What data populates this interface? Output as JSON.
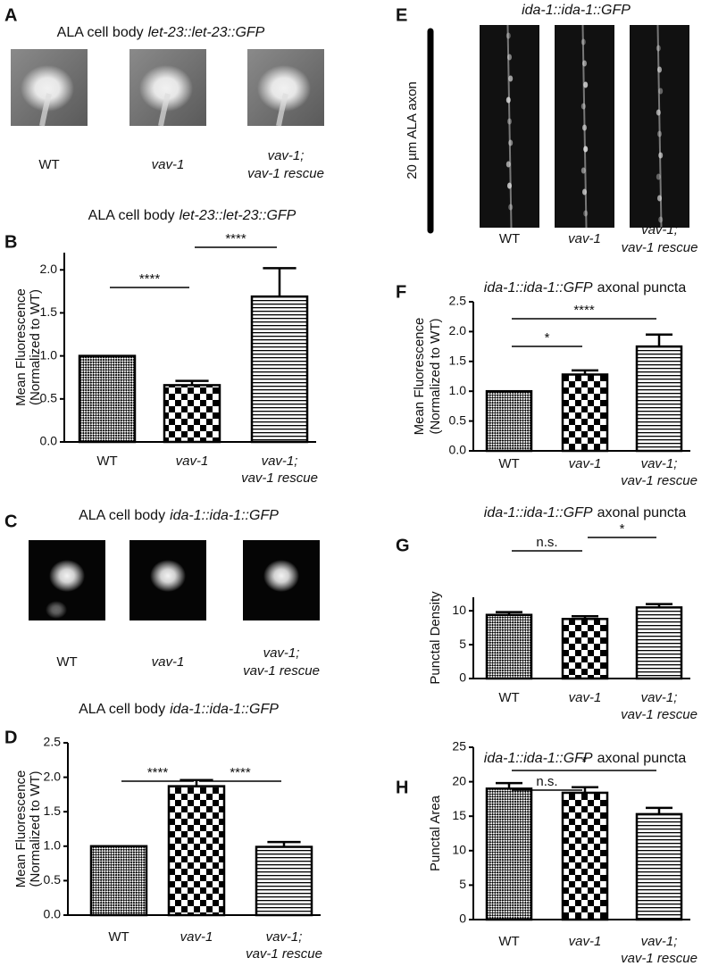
{
  "images": [
    {
      "panel": "A",
      "title": [
        {
          "text": "ALA cell body"
        },
        {
          "text": "let-23::let-23::GFP",
          "italic": true
        }
      ],
      "captions": [
        "WT",
        "vav-1",
        "vav-1; vav-1 rescue"
      ]
    },
    {
      "panel": "C",
      "title": [
        {
          "text": "ALA cell body"
        },
        {
          "text": "ida-1::ida-1::GFP",
          "italic": true
        }
      ],
      "captions": [
        "WT",
        "vav-1",
        "vav-1; vav-1 rescue"
      ]
    },
    {
      "panel": "E",
      "title": [
        {
          "text": "ida-1::ida-1::GFP",
          "italic": true
        }
      ],
      "scale_label": "20 µm ALA axon",
      "captions": [
        "WT",
        "vav-1",
        "vav-1; vav-1 rescue"
      ]
    }
  ],
  "chart_data": [
    {
      "panel": "B",
      "type": "bar",
      "title": [
        {
          "text": "ALA cell body"
        },
        {
          "text": "let-23::let-23::GFP",
          "italic": true
        }
      ],
      "ylabel": [
        "Mean Fluorescence",
        "(Normalized to WT)"
      ],
      "categories": [
        "WT",
        "vav-1",
        "vav-1; vav-1 rescue"
      ],
      "values": [
        1.0,
        0.66,
        1.69
      ],
      "errors": [
        null,
        0.05,
        0.33
      ],
      "ylim": [
        0,
        2.2
      ],
      "yticks": [
        {
          "value": 0,
          "label": "0.0"
        },
        0.5,
        {
          "value": 1,
          "label": "1.0"
        },
        1.5,
        {
          "value": 2,
          "label": "2.0"
        }
      ],
      "significance": [
        {
          "from": 0,
          "to": 1,
          "label": "****"
        },
        {
          "from": 1,
          "to": 2,
          "label": "****"
        }
      ]
    },
    {
      "panel": "D",
      "type": "bar",
      "title": [
        {
          "text": "ALA cell body"
        },
        {
          "text": "ida-1::ida-1::GFP",
          "italic": true
        }
      ],
      "ylabel": [
        "Mean Fluorescence",
        "(Normalized to WT)"
      ],
      "categories": [
        "WT",
        "vav-1",
        "vav-1; vav-1 rescue"
      ],
      "values": [
        1.0,
        1.87,
        0.99
      ],
      "errors": [
        null,
        0.09,
        0.07
      ],
      "ylim": [
        0,
        2.5
      ],
      "yticks": [
        {
          "value": 0,
          "label": "0.0"
        },
        0.5,
        {
          "value": 1,
          "label": "1.0"
        },
        1.5,
        {
          "value": 2,
          "label": "2.0"
        },
        2.5
      ],
      "significance": [
        {
          "from": 0,
          "to": 1,
          "label": "****"
        },
        {
          "from": 1,
          "to": 2,
          "label": "****"
        }
      ]
    },
    {
      "panel": "F",
      "type": "bar",
      "title": [
        {
          "text": "ida-1::ida-1::GFP",
          "italic": true
        },
        {
          "text": "axonal puncta"
        }
      ],
      "ylabel": [
        "Mean Fluorescence",
        "(Normalized to WT)"
      ],
      "categories": [
        "WT",
        "vav-1",
        "vav-1; vav-1 rescue"
      ],
      "values": [
        1.0,
        1.28,
        1.75
      ],
      "errors": [
        null,
        0.07,
        0.2
      ],
      "ylim": [
        0,
        2.5
      ],
      "yticks": [
        {
          "value": 0,
          "label": "0.0"
        },
        0.5,
        {
          "value": 1,
          "label": "1.0"
        },
        1.5,
        {
          "value": 2,
          "label": "2.0"
        },
        2.5
      ],
      "significance": [
        {
          "from": 0,
          "to": 1,
          "label": "*"
        },
        {
          "from": 0,
          "to": 2,
          "label": "****"
        }
      ]
    },
    {
      "panel": "G",
      "type": "bar",
      "title": [
        {
          "text": "ida-1::ida-1::GFP",
          "italic": true
        },
        {
          "text": "axonal puncta"
        }
      ],
      "ylabel": [
        "Punctal Density"
      ],
      "categories": [
        "WT",
        "vav-1",
        "vav-1; vav-1 rescue"
      ],
      "values": [
        9.4,
        8.8,
        10.5
      ],
      "errors": [
        0.4,
        0.4,
        0.5
      ],
      "ylim": [
        0,
        12
      ],
      "yticks": [
        0,
        5,
        10
      ],
      "significance": [
        {
          "from": 0,
          "to": 1,
          "label": "n.s."
        },
        {
          "from": 1,
          "to": 2,
          "label": "*"
        }
      ]
    },
    {
      "panel": "H",
      "type": "bar",
      "title": [
        {
          "text": "ida-1::ida-1::GFP",
          "italic": true
        },
        {
          "text": "axonal puncta"
        }
      ],
      "ylabel": [
        "Punctal Area"
      ],
      "categories": [
        "WT",
        "vav-1",
        "vav-1; vav-1 rescue"
      ],
      "values": [
        19.0,
        18.4,
        15.3
      ],
      "errors": [
        0.8,
        0.8,
        0.9
      ],
      "ylim": [
        0,
        25
      ],
      "yticks": [
        0,
        5,
        10,
        15,
        20,
        25
      ],
      "significance": [
        {
          "from": 0,
          "to": 2,
          "label": "*"
        },
        {
          "from": 0,
          "to": 1,
          "label": "n.s."
        }
      ]
    }
  ]
}
